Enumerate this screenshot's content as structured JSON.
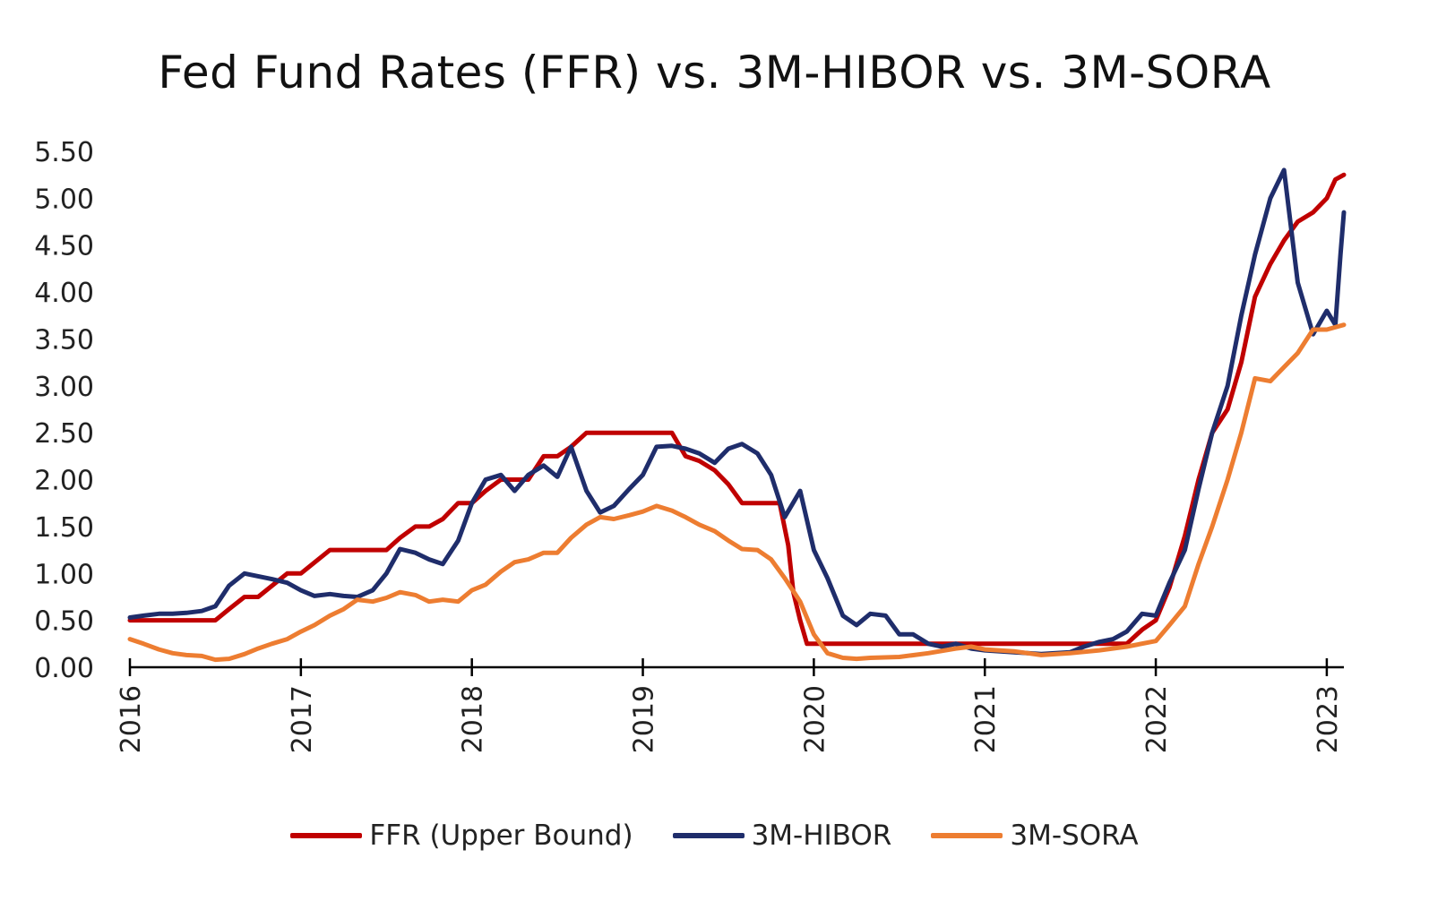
{
  "chart_data": {
    "type": "line",
    "title": "Fed Fund Rates (FFR) vs. 3M-HIBOR vs. 3M-SORA",
    "xlabel": "",
    "ylabel": "",
    "xlim": [
      2016,
      2023.1
    ],
    "ylim": [
      0,
      5.5
    ],
    "y_ticks": [
      "0.00",
      "0.50",
      "1.00",
      "1.50",
      "2.00",
      "2.50",
      "3.00",
      "3.50",
      "4.00",
      "4.50",
      "5.00",
      "5.50"
    ],
    "x_ticks": [
      "2016",
      "2017",
      "2018",
      "2019",
      "2020",
      "2021",
      "2022",
      "2023"
    ],
    "grid": false,
    "legend_position": "bottom",
    "series": [
      {
        "name": "FFR (Upper Bound)",
        "color": "#C00000",
        "points": [
          [
            2016.0,
            0.5
          ],
          [
            2016.5,
            0.5
          ],
          [
            2016.58,
            0.62
          ],
          [
            2016.67,
            0.75
          ],
          [
            2016.75,
            0.75
          ],
          [
            2016.92,
            1.0
          ],
          [
            2017.0,
            1.0
          ],
          [
            2017.17,
            1.25
          ],
          [
            2017.5,
            1.25
          ],
          [
            2017.58,
            1.38
          ],
          [
            2017.67,
            1.5
          ],
          [
            2017.75,
            1.5
          ],
          [
            2017.83,
            1.58
          ],
          [
            2017.92,
            1.75
          ],
          [
            2018.0,
            1.75
          ],
          [
            2018.08,
            1.88
          ],
          [
            2018.17,
            2.0
          ],
          [
            2018.33,
            2.0
          ],
          [
            2018.42,
            2.25
          ],
          [
            2018.5,
            2.25
          ],
          [
            2018.58,
            2.35
          ],
          [
            2018.67,
            2.5
          ],
          [
            2019.17,
            2.5
          ],
          [
            2019.25,
            2.25
          ],
          [
            2019.33,
            2.2
          ],
          [
            2019.42,
            2.1
          ],
          [
            2019.5,
            1.95
          ],
          [
            2019.58,
            1.75
          ],
          [
            2019.8,
            1.75
          ],
          [
            2019.85,
            1.3
          ],
          [
            2019.88,
            0.8
          ],
          [
            2019.92,
            0.5
          ],
          [
            2019.96,
            0.25
          ],
          [
            2021.83,
            0.25
          ],
          [
            2021.92,
            0.4
          ],
          [
            2022.0,
            0.5
          ],
          [
            2022.08,
            0.85
          ],
          [
            2022.17,
            1.4
          ],
          [
            2022.25,
            2.0
          ],
          [
            2022.33,
            2.5
          ],
          [
            2022.42,
            2.75
          ],
          [
            2022.5,
            3.25
          ],
          [
            2022.58,
            3.95
          ],
          [
            2022.67,
            4.3
          ],
          [
            2022.75,
            4.55
          ],
          [
            2022.83,
            4.75
          ],
          [
            2022.92,
            4.85
          ],
          [
            2023.0,
            5.0
          ],
          [
            2023.05,
            5.2
          ],
          [
            2023.1,
            5.25
          ]
        ]
      },
      {
        "name": "3M-HIBOR",
        "color": "#1F2D6B",
        "points": [
          [
            2016.0,
            0.53
          ],
          [
            2016.08,
            0.55
          ],
          [
            2016.17,
            0.57
          ],
          [
            2016.25,
            0.57
          ],
          [
            2016.33,
            0.58
          ],
          [
            2016.42,
            0.6
          ],
          [
            2016.5,
            0.65
          ],
          [
            2016.58,
            0.87
          ],
          [
            2016.67,
            1.0
          ],
          [
            2016.75,
            0.97
          ],
          [
            2016.83,
            0.94
          ],
          [
            2016.92,
            0.9
          ],
          [
            2017.0,
            0.82
          ],
          [
            2017.08,
            0.76
          ],
          [
            2017.17,
            0.78
          ],
          [
            2017.25,
            0.76
          ],
          [
            2017.33,
            0.75
          ],
          [
            2017.42,
            0.82
          ],
          [
            2017.5,
            1.0
          ],
          [
            2017.58,
            1.26
          ],
          [
            2017.67,
            1.22
          ],
          [
            2017.75,
            1.15
          ],
          [
            2017.83,
            1.1
          ],
          [
            2017.92,
            1.35
          ],
          [
            2018.0,
            1.75
          ],
          [
            2018.08,
            2.0
          ],
          [
            2018.17,
            2.05
          ],
          [
            2018.25,
            1.88
          ],
          [
            2018.33,
            2.05
          ],
          [
            2018.42,
            2.15
          ],
          [
            2018.5,
            2.03
          ],
          [
            2018.58,
            2.35
          ],
          [
            2018.67,
            1.88
          ],
          [
            2018.75,
            1.65
          ],
          [
            2018.83,
            1.72
          ],
          [
            2018.92,
            1.9
          ],
          [
            2019.0,
            2.05
          ],
          [
            2019.08,
            2.35
          ],
          [
            2019.17,
            2.36
          ],
          [
            2019.25,
            2.33
          ],
          [
            2019.33,
            2.28
          ],
          [
            2019.42,
            2.18
          ],
          [
            2019.5,
            2.33
          ],
          [
            2019.58,
            2.38
          ],
          [
            2019.67,
            2.28
          ],
          [
            2019.75,
            2.05
          ],
          [
            2019.83,
            1.6
          ],
          [
            2019.92,
            1.88
          ],
          [
            2020.0,
            1.25
          ],
          [
            2020.08,
            0.95
          ],
          [
            2020.17,
            0.55
          ],
          [
            2020.25,
            0.45
          ],
          [
            2020.33,
            0.57
          ],
          [
            2020.42,
            0.55
          ],
          [
            2020.5,
            0.35
          ],
          [
            2020.58,
            0.35
          ],
          [
            2020.67,
            0.25
          ],
          [
            2020.75,
            0.22
          ],
          [
            2020.83,
            0.25
          ],
          [
            2020.92,
            0.2
          ],
          [
            2021.0,
            0.18
          ],
          [
            2021.17,
            0.16
          ],
          [
            2021.33,
            0.14
          ],
          [
            2021.5,
            0.16
          ],
          [
            2021.58,
            0.22
          ],
          [
            2021.67,
            0.27
          ],
          [
            2021.75,
            0.3
          ],
          [
            2021.83,
            0.38
          ],
          [
            2021.92,
            0.57
          ],
          [
            2022.0,
            0.55
          ],
          [
            2022.08,
            0.9
          ],
          [
            2022.17,
            1.25
          ],
          [
            2022.25,
            1.9
          ],
          [
            2022.33,
            2.5
          ],
          [
            2022.42,
            3.0
          ],
          [
            2022.5,
            3.75
          ],
          [
            2022.58,
            4.4
          ],
          [
            2022.67,
            5.0
          ],
          [
            2022.75,
            5.3
          ],
          [
            2022.83,
            4.1
          ],
          [
            2022.92,
            3.55
          ],
          [
            2023.0,
            3.8
          ],
          [
            2023.05,
            3.65
          ],
          [
            2023.08,
            4.4
          ],
          [
            2023.1,
            4.85
          ]
        ]
      },
      {
        "name": "3M-SORA",
        "color": "#ED7D31",
        "points": [
          [
            2016.0,
            0.3
          ],
          [
            2016.08,
            0.25
          ],
          [
            2016.17,
            0.19
          ],
          [
            2016.25,
            0.15
          ],
          [
            2016.33,
            0.13
          ],
          [
            2016.42,
            0.12
          ],
          [
            2016.5,
            0.08
          ],
          [
            2016.58,
            0.09
          ],
          [
            2016.67,
            0.14
          ],
          [
            2016.75,
            0.2
          ],
          [
            2016.83,
            0.25
          ],
          [
            2016.92,
            0.3
          ],
          [
            2017.0,
            0.38
          ],
          [
            2017.08,
            0.45
          ],
          [
            2017.17,
            0.55
          ],
          [
            2017.25,
            0.62
          ],
          [
            2017.33,
            0.72
          ],
          [
            2017.42,
            0.7
          ],
          [
            2017.5,
            0.74
          ],
          [
            2017.58,
            0.8
          ],
          [
            2017.67,
            0.77
          ],
          [
            2017.75,
            0.7
          ],
          [
            2017.83,
            0.72
          ],
          [
            2017.92,
            0.7
          ],
          [
            2018.0,
            0.82
          ],
          [
            2018.08,
            0.88
          ],
          [
            2018.17,
            1.02
          ],
          [
            2018.25,
            1.12
          ],
          [
            2018.33,
            1.15
          ],
          [
            2018.42,
            1.22
          ],
          [
            2018.5,
            1.22
          ],
          [
            2018.58,
            1.38
          ],
          [
            2018.67,
            1.52
          ],
          [
            2018.75,
            1.6
          ],
          [
            2018.83,
            1.58
          ],
          [
            2018.92,
            1.62
          ],
          [
            2019.0,
            1.66
          ],
          [
            2019.08,
            1.72
          ],
          [
            2019.17,
            1.67
          ],
          [
            2019.25,
            1.6
          ],
          [
            2019.33,
            1.52
          ],
          [
            2019.42,
            1.45
          ],
          [
            2019.5,
            1.35
          ],
          [
            2019.58,
            1.26
          ],
          [
            2019.67,
            1.25
          ],
          [
            2019.75,
            1.15
          ],
          [
            2019.83,
            0.95
          ],
          [
            2019.92,
            0.7
          ],
          [
            2020.0,
            0.35
          ],
          [
            2020.08,
            0.15
          ],
          [
            2020.17,
            0.1
          ],
          [
            2020.25,
            0.09
          ],
          [
            2020.33,
            0.1
          ],
          [
            2020.5,
            0.11
          ],
          [
            2020.67,
            0.15
          ],
          [
            2020.83,
            0.2
          ],
          [
            2020.92,
            0.22
          ],
          [
            2021.0,
            0.19
          ],
          [
            2021.17,
            0.17
          ],
          [
            2021.33,
            0.13
          ],
          [
            2021.5,
            0.15
          ],
          [
            2021.67,
            0.18
          ],
          [
            2021.83,
            0.22
          ],
          [
            2022.0,
            0.28
          ],
          [
            2022.08,
            0.45
          ],
          [
            2022.17,
            0.65
          ],
          [
            2022.25,
            1.1
          ],
          [
            2022.33,
            1.5
          ],
          [
            2022.42,
            2.0
          ],
          [
            2022.5,
            2.5
          ],
          [
            2022.58,
            3.08
          ],
          [
            2022.67,
            3.05
          ],
          [
            2022.75,
            3.2
          ],
          [
            2022.83,
            3.35
          ],
          [
            2022.92,
            3.6
          ],
          [
            2023.0,
            3.6
          ],
          [
            2023.1,
            3.65
          ]
        ]
      }
    ]
  }
}
